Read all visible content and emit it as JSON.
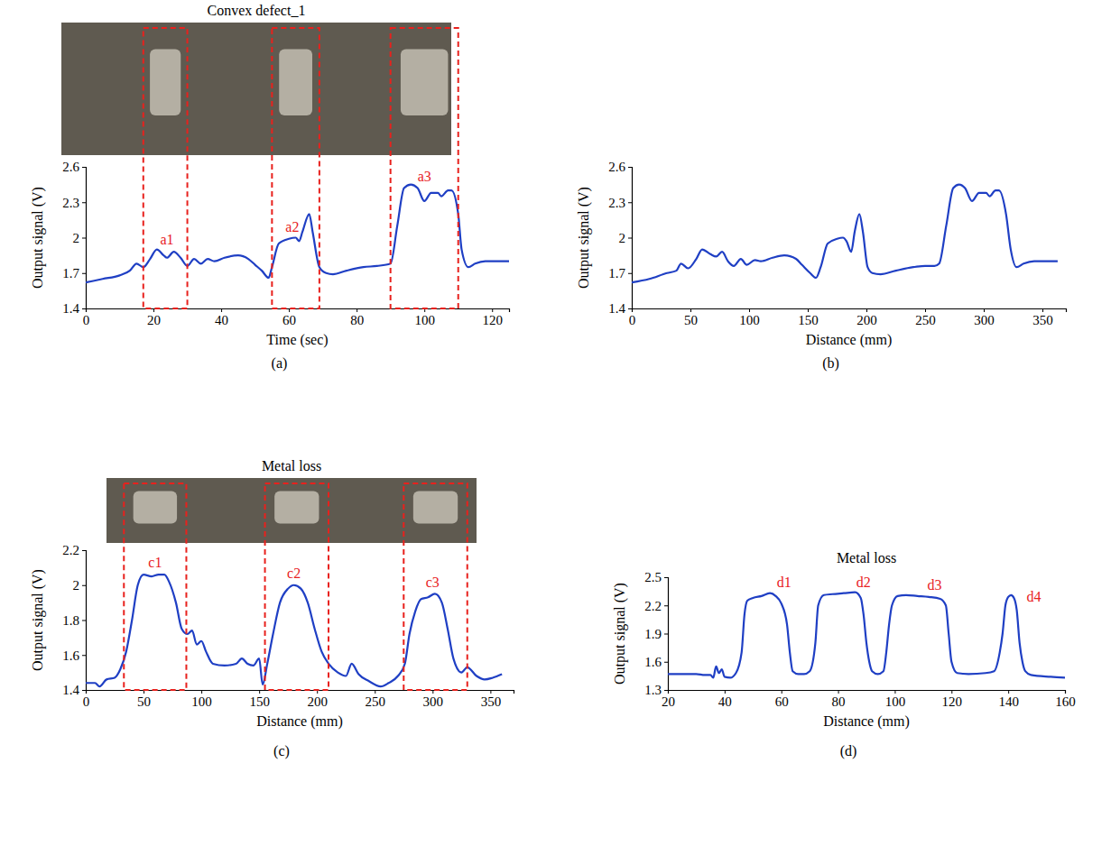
{
  "chart_data": [
    {
      "type": "line",
      "panel": "(a)",
      "title": "Convex defect_1",
      "x_label": "Time (sec)",
      "y_label": "Output signal (V)",
      "color": "#1f3fc4",
      "x": [
        0,
        5,
        10,
        13,
        15,
        17,
        19,
        21,
        23,
        24,
        26,
        28,
        30,
        32,
        34,
        36,
        38,
        41,
        45,
        48,
        50,
        52,
        54,
        55,
        57,
        60,
        62,
        63,
        64,
        66,
        67,
        69,
        71,
        73,
        77,
        82,
        86,
        90,
        92,
        94,
        96,
        98,
        100,
        102,
        104,
        105,
        107,
        108,
        110,
        111,
        113,
        115,
        118,
        125
      ],
      "values": [
        1.62,
        1.65,
        1.68,
        1.72,
        1.78,
        1.75,
        1.82,
        1.9,
        1.85,
        1.83,
        1.88,
        1.83,
        1.76,
        1.82,
        1.78,
        1.82,
        1.8,
        1.83,
        1.85,
        1.82,
        1.77,
        1.72,
        1.66,
        1.75,
        1.95,
        1.99,
        2.0,
        1.97,
        2.05,
        2.2,
        2.05,
        1.75,
        1.7,
        1.69,
        1.72,
        1.75,
        1.76,
        1.78,
        2.1,
        2.42,
        2.45,
        2.42,
        2.31,
        2.38,
        2.38,
        2.35,
        2.4,
        2.4,
        2.2,
        1.9,
        1.75,
        1.78,
        1.8,
        1.8
      ],
      "xlim": [
        0,
        125
      ],
      "ylim": [
        1.4,
        2.6
      ],
      "xticks": [
        0,
        20,
        40,
        60,
        80,
        100,
        120
      ],
      "yticks": [
        1.4,
        1.7,
        2,
        2.3,
        2.6
      ],
      "highlights": [
        [
          17,
          30
        ],
        [
          55,
          69
        ],
        [
          90,
          110
        ]
      ],
      "annotations": [
        {
          "text": "a1",
          "x": 24,
          "y": 1.94
        },
        {
          "text": "a2",
          "x": 61,
          "y": 2.05
        },
        {
          "text": "a3",
          "x": 100,
          "y": 2.48
        }
      ]
    },
    {
      "type": "line",
      "panel": "(b)",
      "x_label": "Distance (mm)",
      "y_label": "Output signal (V)",
      "color": "#1f3fc4",
      "x": [
        0,
        15,
        30,
        38,
        42,
        48,
        55,
        60,
        67,
        72,
        77,
        82,
        87,
        93,
        98,
        105,
        110,
        120,
        130,
        140,
        145,
        152,
        157,
        161,
        167,
        175,
        180,
        183,
        187,
        190,
        194,
        197,
        201,
        205,
        212,
        225,
        240,
        250,
        258,
        262,
        268,
        274,
        279,
        284,
        290,
        296,
        302,
        305,
        310,
        313,
        319,
        323,
        328,
        334,
        343,
        363
      ],
      "values": [
        1.62,
        1.65,
        1.7,
        1.72,
        1.78,
        1.74,
        1.82,
        1.9,
        1.86,
        1.84,
        1.88,
        1.8,
        1.76,
        1.82,
        1.77,
        1.81,
        1.8,
        1.83,
        1.85,
        1.82,
        1.77,
        1.7,
        1.66,
        1.75,
        1.95,
        1.99,
        2.0,
        1.97,
        1.88,
        2.05,
        2.2,
        2.05,
        1.75,
        1.7,
        1.69,
        1.72,
        1.75,
        1.76,
        1.76,
        1.78,
        2.1,
        2.42,
        2.45,
        2.42,
        2.31,
        2.38,
        2.38,
        2.35,
        2.4,
        2.4,
        2.2,
        1.9,
        1.75,
        1.78,
        1.8,
        1.8
      ],
      "xlim": [
        0,
        370
      ],
      "ylim": [
        1.4,
        2.6
      ],
      "xticks": [
        0,
        50,
        100,
        150,
        200,
        250,
        300,
        350
      ],
      "yticks": [
        1.4,
        1.7,
        2,
        2.3,
        2.6
      ]
    },
    {
      "type": "line",
      "panel": "(c)",
      "title": "Metal loss",
      "x_label": "Distance (mm)",
      "y_label": "Output signal (V)",
      "color": "#1f3fc4",
      "x": [
        0,
        8,
        12,
        18,
        25,
        30,
        35,
        40,
        45,
        50,
        57,
        63,
        68,
        72,
        78,
        83,
        88,
        92,
        96,
        100,
        104,
        110,
        120,
        130,
        135,
        140,
        145,
        150,
        153,
        157,
        162,
        168,
        175,
        180,
        186,
        192,
        198,
        204,
        210,
        218,
        225,
        230,
        236,
        245,
        255,
        262,
        270,
        276,
        280,
        285,
        290,
        296,
        302,
        308,
        313,
        318,
        325,
        330,
        338,
        345,
        352,
        360
      ],
      "values": [
        1.44,
        1.44,
        1.42,
        1.46,
        1.47,
        1.52,
        1.62,
        1.8,
        2.0,
        2.06,
        2.05,
        2.06,
        2.06,
        2.02,
        1.9,
        1.75,
        1.72,
        1.74,
        1.66,
        1.68,
        1.62,
        1.55,
        1.54,
        1.55,
        1.58,
        1.55,
        1.54,
        1.58,
        1.43,
        1.55,
        1.72,
        1.9,
        1.98,
        2.0,
        1.98,
        1.9,
        1.75,
        1.62,
        1.55,
        1.5,
        1.48,
        1.55,
        1.49,
        1.45,
        1.42,
        1.44,
        1.48,
        1.55,
        1.72,
        1.85,
        1.92,
        1.93,
        1.95,
        1.9,
        1.75,
        1.58,
        1.5,
        1.53,
        1.48,
        1.46,
        1.47,
        1.49
      ],
      "xlim": [
        0,
        370
      ],
      "ylim": [
        1.4,
        2.2
      ],
      "xticks": [
        0,
        50,
        100,
        150,
        200,
        250,
        300,
        350
      ],
      "yticks": [
        1.4,
        1.6,
        1.8,
        2,
        2.2
      ],
      "highlights": [
        [
          33,
          87
        ],
        [
          155,
          210
        ],
        [
          275,
          330
        ]
      ],
      "annotations": [
        {
          "text": "c1",
          "x": 60,
          "y": 2.1
        },
        {
          "text": "c2",
          "x": 180,
          "y": 2.04
        },
        {
          "text": "c3",
          "x": 300,
          "y": 1.99
        }
      ]
    },
    {
      "type": "line",
      "panel": "(d)",
      "title": "Metal loss",
      "x_label": "Distance (mm)",
      "y_label": "Output signal (V)",
      "color": "#1f3fc4",
      "x": [
        20,
        30,
        33,
        35,
        36,
        37,
        38,
        39,
        40,
        42,
        44,
        46,
        47,
        48,
        50,
        53,
        56,
        58,
        60,
        62,
        63,
        64,
        66,
        68,
        70,
        72,
        73,
        75,
        78,
        82,
        86,
        88,
        89,
        90,
        91,
        92,
        94,
        96,
        97,
        98,
        99,
        101,
        104,
        108,
        112,
        116,
        118,
        119,
        120,
        122,
        126,
        132,
        135,
        137,
        138,
        139,
        140,
        141,
        142,
        143,
        144,
        145,
        146,
        148,
        155,
        160
      ],
      "values": [
        1.47,
        1.47,
        1.46,
        1.46,
        1.43,
        1.55,
        1.48,
        1.52,
        1.44,
        1.43,
        1.48,
        1.7,
        2.1,
        2.25,
        2.28,
        2.3,
        2.33,
        2.3,
        2.22,
        2.0,
        1.7,
        1.5,
        1.47,
        1.47,
        1.5,
        1.8,
        2.2,
        2.31,
        2.32,
        2.33,
        2.34,
        2.28,
        2.1,
        1.8,
        1.6,
        1.5,
        1.47,
        1.5,
        1.7,
        2.0,
        2.2,
        2.3,
        2.31,
        2.3,
        2.29,
        2.27,
        2.2,
        1.9,
        1.6,
        1.48,
        1.47,
        1.48,
        1.5,
        1.7,
        1.9,
        2.2,
        2.29,
        2.31,
        2.28,
        2.15,
        1.8,
        1.6,
        1.5,
        1.46,
        1.44,
        1.43
      ],
      "xlim": [
        20,
        160
      ],
      "ylim": [
        1.3,
        2.5
      ],
      "xticks": [
        20,
        40,
        60,
        80,
        100,
        120,
        140,
        160
      ],
      "yticks": [
        1.3,
        1.6,
        1.9,
        2.2,
        2.5
      ],
      "annotations": [
        {
          "text": "d1",
          "x": 61,
          "y": 2.39
        },
        {
          "text": "d2",
          "x": 89,
          "y": 2.39
        },
        {
          "text": "d3",
          "x": 114,
          "y": 2.37
        },
        {
          "text": "d4",
          "x": 149,
          "y": 2.24
        }
      ]
    }
  ]
}
